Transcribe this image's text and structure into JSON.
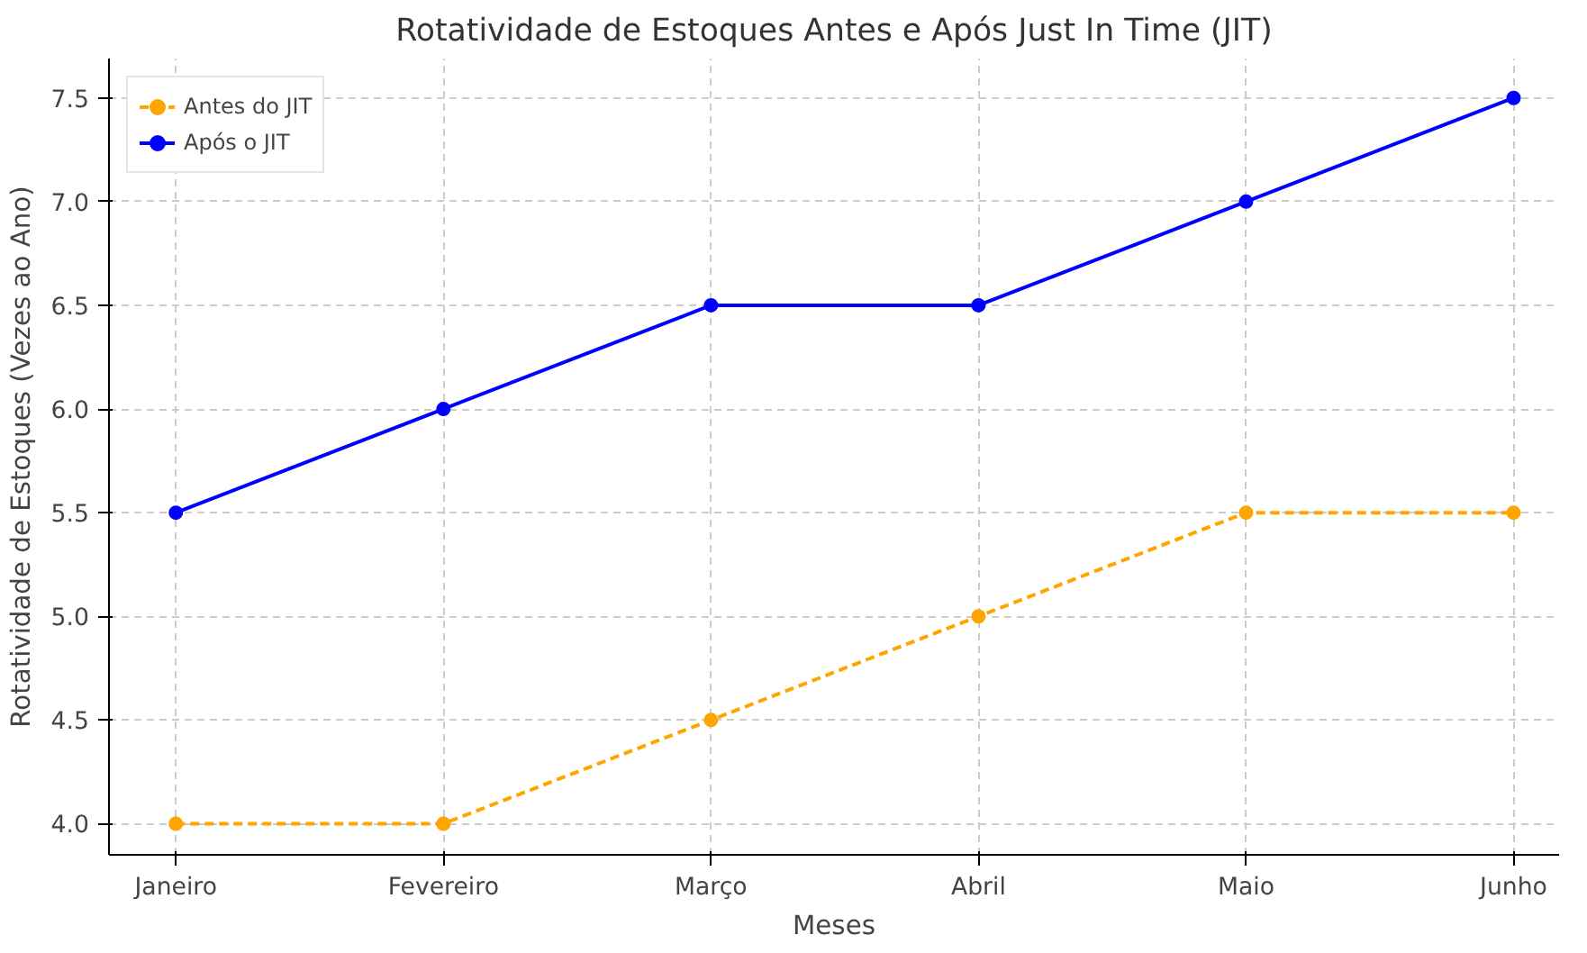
{
  "chart_data": {
    "type": "line",
    "title": "Rotatividade de Estoques Antes e Após Just In Time (JIT)",
    "xlabel": "Meses",
    "ylabel": "Rotatividade de Estoques (Vezes ao Ano)",
    "categories": [
      "Janeiro",
      "Fevereiro",
      "Março",
      "Abril",
      "Maio",
      "Junho"
    ],
    "series": [
      {
        "name": "Antes do JIT",
        "color": "#ffa500",
        "line_style": "dashed",
        "values": [
          4.0,
          4.0,
          4.5,
          5.0,
          5.5,
          5.5
        ]
      },
      {
        "name": "Após o JIT",
        "color": "#0000ff",
        "line_style": "solid",
        "values": [
          5.5,
          6.0,
          6.5,
          6.5,
          7.0,
          7.5
        ]
      }
    ],
    "ylim": [
      3.85,
      7.69
    ],
    "yticks": [
      {
        "value": 4.0,
        "label": "4.0"
      },
      {
        "value": 4.5,
        "label": "4.5"
      },
      {
        "value": 5.0,
        "label": "5.0"
      },
      {
        "value": 5.5,
        "label": "5.5"
      },
      {
        "value": 6.0,
        "label": "6.0"
      },
      {
        "value": 6.5,
        "label": "6.5"
      },
      {
        "value": 7.0,
        "label": "7.0"
      },
      {
        "value": 7.5,
        "label": "7.5"
      }
    ],
    "grid": true,
    "legend": "top left",
    "marker": "circle"
  }
}
